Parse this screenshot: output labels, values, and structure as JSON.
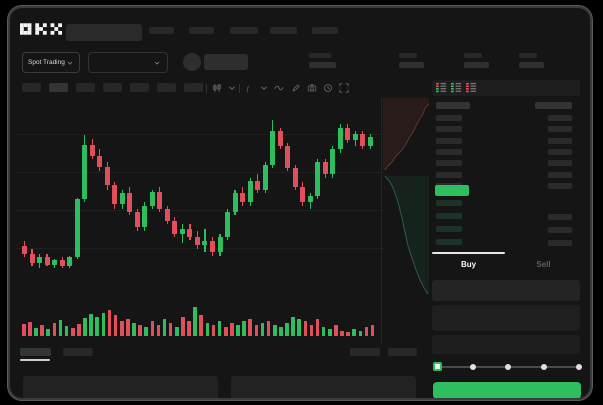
{
  "header": {
    "logo_text": "OKX",
    "search": {
      "placeholder": ""
    },
    "nav_placeholders": 5,
    "market_selector": {
      "label": "Spot Trading"
    },
    "pair_selector": {
      "label": ""
    },
    "stats_placeholders": 4
  },
  "toolbar": {
    "interval_pills": 7,
    "active_interval_index": 1,
    "right_icons": [
      "candlestick-icon",
      "chevron-down-icon",
      "fx-indicator-icon",
      "chevron-down-icon",
      "wave-icon",
      "brush-icon",
      "camera-icon",
      "clock-icon",
      "expand-icon"
    ]
  },
  "order_book": {
    "view_icons": [
      "book-combined-icon",
      "book-bids-icon",
      "book-asks-icon"
    ],
    "ask_rows": 7,
    "bid_rows": 4,
    "last_price_highlight": "up"
  },
  "trade_panel": {
    "tabs": [
      {
        "label": "Buy",
        "active": true
      },
      {
        "label": "Sell",
        "active": false
      }
    ],
    "form_rows": 3,
    "slider_stops": 5,
    "slider_value_index": 0
  },
  "bottom_bar": {
    "tab_placeholders": 2,
    "active_tab_index": 0,
    "button_placeholders": 2,
    "panel_placeholders": 2
  },
  "colors": {
    "up": "#2ebd5f",
    "down": "#e0505c",
    "bid_row": "#1c3328",
    "accent_button": "#2ebd5f"
  },
  "chart_data": {
    "type": "candlestick+volume+depth",
    "title": "",
    "xlabel": "",
    "ylabel": "",
    "axis_labels_visible": false,
    "price_scale": "relative 0-100 (no axis labels shown in UI)",
    "ylim": [
      0,
      100
    ],
    "candles_ohlc": [
      [
        14,
        17,
        7,
        9
      ],
      [
        9,
        12,
        1,
        3
      ],
      [
        3,
        9,
        0,
        7
      ],
      [
        7,
        9,
        1,
        2
      ],
      [
        2,
        6,
        0,
        5
      ],
      [
        5,
        7,
        0,
        1
      ],
      [
        1,
        8,
        0,
        7
      ],
      [
        7,
        45,
        6,
        44
      ],
      [
        44,
        85,
        42,
        79
      ],
      [
        79,
        83,
        70,
        72
      ],
      [
        72,
        76,
        62,
        65
      ],
      [
        65,
        68,
        50,
        53
      ],
      [
        53,
        55,
        38,
        41
      ],
      [
        41,
        50,
        38,
        48
      ],
      [
        48,
        52,
        34,
        36
      ],
      [
        36,
        38,
        24,
        26
      ],
      [
        26,
        42,
        24,
        40
      ],
      [
        40,
        50,
        38,
        49
      ],
      [
        49,
        52,
        36,
        38
      ],
      [
        38,
        40,
        28,
        30
      ],
      [
        30,
        33,
        20,
        22
      ],
      [
        22,
        28,
        16,
        25
      ],
      [
        25,
        28,
        18,
        20
      ],
      [
        20,
        24,
        12,
        15
      ],
      [
        15,
        25,
        10,
        17
      ],
      [
        17,
        20,
        8,
        10
      ],
      [
        10,
        22,
        8,
        20
      ],
      [
        20,
        38,
        18,
        36
      ],
      [
        36,
        50,
        34,
        48
      ],
      [
        48,
        52,
        40,
        42
      ],
      [
        42,
        58,
        40,
        56
      ],
      [
        56,
        60,
        48,
        50
      ],
      [
        50,
        68,
        48,
        66
      ],
      [
        66,
        95,
        64,
        88
      ],
      [
        88,
        90,
        76,
        78
      ],
      [
        78,
        80,
        62,
        64
      ],
      [
        64,
        66,
        50,
        52
      ],
      [
        52,
        55,
        40,
        42
      ],
      [
        42,
        48,
        38,
        46
      ],
      [
        46,
        70,
        44,
        68
      ],
      [
        68,
        70,
        58,
        60
      ],
      [
        60,
        78,
        58,
        76
      ],
      [
        76,
        92,
        74,
        90
      ],
      [
        90,
        92,
        80,
        82
      ],
      [
        82,
        88,
        78,
        86
      ],
      [
        86,
        88,
        76,
        78
      ],
      [
        78,
        86,
        76,
        84
      ]
    ],
    "volume": [
      [
        12,
        "r"
      ],
      [
        14,
        "r"
      ],
      [
        8,
        "g"
      ],
      [
        11,
        "r"
      ],
      [
        7,
        "g"
      ],
      [
        13,
        "r"
      ],
      [
        16,
        "g"
      ],
      [
        10,
        "g"
      ],
      [
        8,
        "r"
      ],
      [
        12,
        "r"
      ],
      [
        18,
        "g"
      ],
      [
        22,
        "g"
      ],
      [
        19,
        "g"
      ],
      [
        23,
        "g"
      ],
      [
        26,
        "r"
      ],
      [
        21,
        "r"
      ],
      [
        15,
        "r"
      ],
      [
        17,
        "r"
      ],
      [
        13,
        "g"
      ],
      [
        11,
        "r"
      ],
      [
        9,
        "g"
      ],
      [
        15,
        "r"
      ],
      [
        11,
        "r"
      ],
      [
        17,
        "g"
      ],
      [
        13,
        "r"
      ],
      [
        9,
        "g"
      ],
      [
        19,
        "r"
      ],
      [
        15,
        "r"
      ],
      [
        29,
        "g"
      ],
      [
        21,
        "r"
      ],
      [
        13,
        "g"
      ],
      [
        11,
        "r"
      ],
      [
        15,
        "g"
      ],
      [
        9,
        "r"
      ],
      [
        13,
        "r"
      ],
      [
        11,
        "g"
      ],
      [
        15,
        "g"
      ],
      [
        17,
        "r"
      ],
      [
        11,
        "r"
      ],
      [
        13,
        "g"
      ],
      [
        15,
        "r"
      ],
      [
        11,
        "g"
      ],
      [
        9,
        "g"
      ],
      [
        13,
        "g"
      ],
      [
        19,
        "g"
      ],
      [
        17,
        "g"
      ],
      [
        15,
        "r"
      ],
      [
        11,
        "r"
      ],
      [
        17,
        "r"
      ],
      [
        9,
        "g"
      ],
      [
        7,
        "g"
      ],
      [
        11,
        "r"
      ],
      [
        5,
        "r"
      ],
      [
        4,
        "r"
      ],
      [
        7,
        "g"
      ],
      [
        5,
        "g"
      ],
      [
        9,
        "r"
      ],
      [
        11,
        "r"
      ]
    ],
    "depth": {
      "asks_curve": [
        [
          47,
          6
        ],
        [
          43,
          10
        ],
        [
          41,
          16
        ],
        [
          37,
          22
        ],
        [
          34,
          28
        ],
        [
          31,
          34
        ],
        [
          27,
          40
        ],
        [
          24,
          46
        ],
        [
          20,
          52
        ],
        [
          14,
          58
        ],
        [
          10,
          64
        ],
        [
          6,
          68
        ],
        [
          3,
          72
        ]
      ],
      "bids_curve": [
        [
          3,
          78
        ],
        [
          8,
          84
        ],
        [
          11,
          90
        ],
        [
          14,
          98
        ],
        [
          17,
          108
        ],
        [
          20,
          120
        ],
        [
          23,
          134
        ],
        [
          26,
          148
        ],
        [
          30,
          160
        ],
        [
          34,
          172
        ],
        [
          38,
          182
        ],
        [
          42,
          190
        ],
        [
          46,
          196
        ]
      ]
    }
  }
}
